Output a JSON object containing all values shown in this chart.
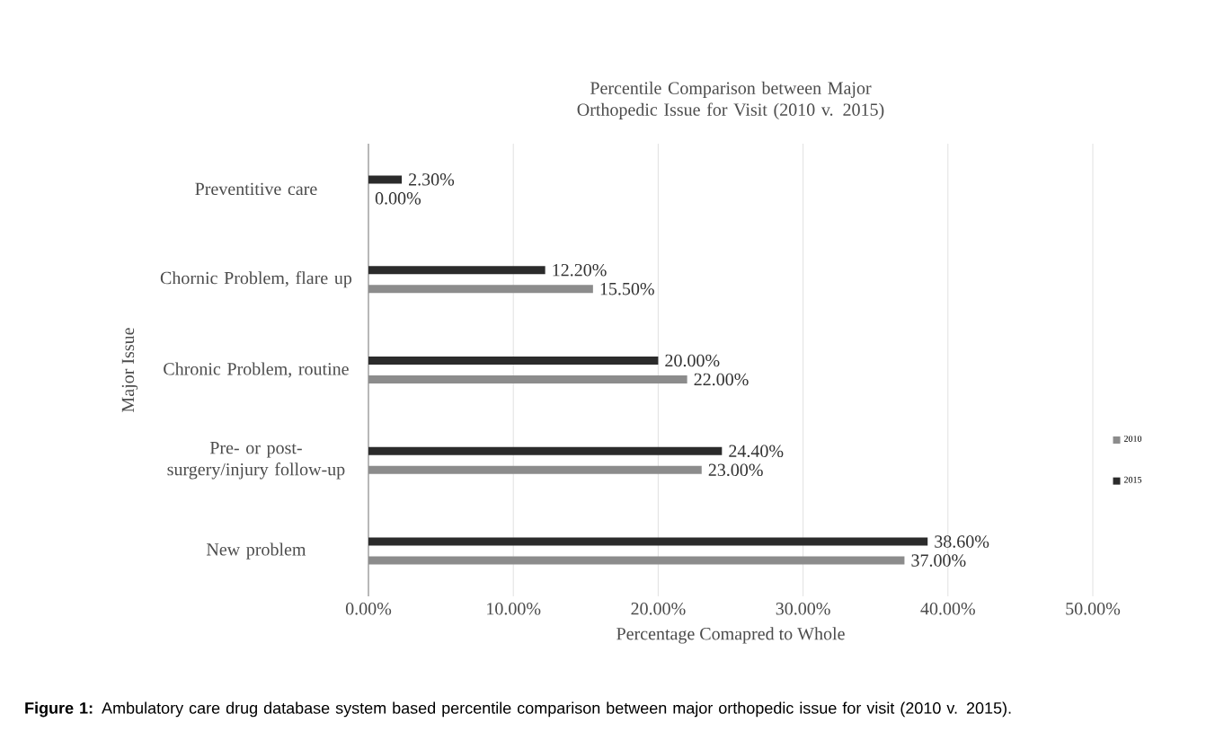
{
  "chart_data": {
    "type": "bar",
    "orientation": "horizontal",
    "title": "Percentile Comparison between Major Orthopedic Issue for Visit (2010 v. 2015)",
    "xlabel": "Percentage Comapred to Whole",
    "ylabel": "Major Issue",
    "categories": [
      "Preventitive care",
      "Chornic Problem, flare up",
      "Chronic Problem, routine",
      "Pre- or post-surgery/injury follow-up",
      "New problem"
    ],
    "series": [
      {
        "name": "2010",
        "color": "#8c8c8c",
        "values": [
          0,
          15.5,
          22,
          23,
          37
        ],
        "value_labels": [
          "0.00%",
          "15.50%",
          "22.00%",
          "23.00%",
          "37.00%"
        ]
      },
      {
        "name": "2015",
        "color": "#2b2b2b",
        "values": [
          2.3,
          12.2,
          20,
          24.4,
          38.6
        ],
        "value_labels": [
          "2.30%",
          "12.20%",
          "20.00%",
          "24.40%",
          "38.60%"
        ]
      }
    ],
    "xlim": [
      0,
      50
    ],
    "xticks": [
      {
        "value": 0,
        "label": "0.00%"
      },
      {
        "value": 10,
        "label": "10.00%"
      },
      {
        "value": 20,
        "label": "20.00%"
      },
      {
        "value": 30,
        "label": "30.00%"
      },
      {
        "value": 40,
        "label": "40.00%"
      },
      {
        "value": 50,
        "label": "50.00%"
      }
    ],
    "grid": "x",
    "legend": "right",
    "annotations": [
      "**Figure 1:** Ambulatory care drug database system based percentile comparison between major orthopedic issue for visit (2010 v. 2015)."
    ]
  }
}
